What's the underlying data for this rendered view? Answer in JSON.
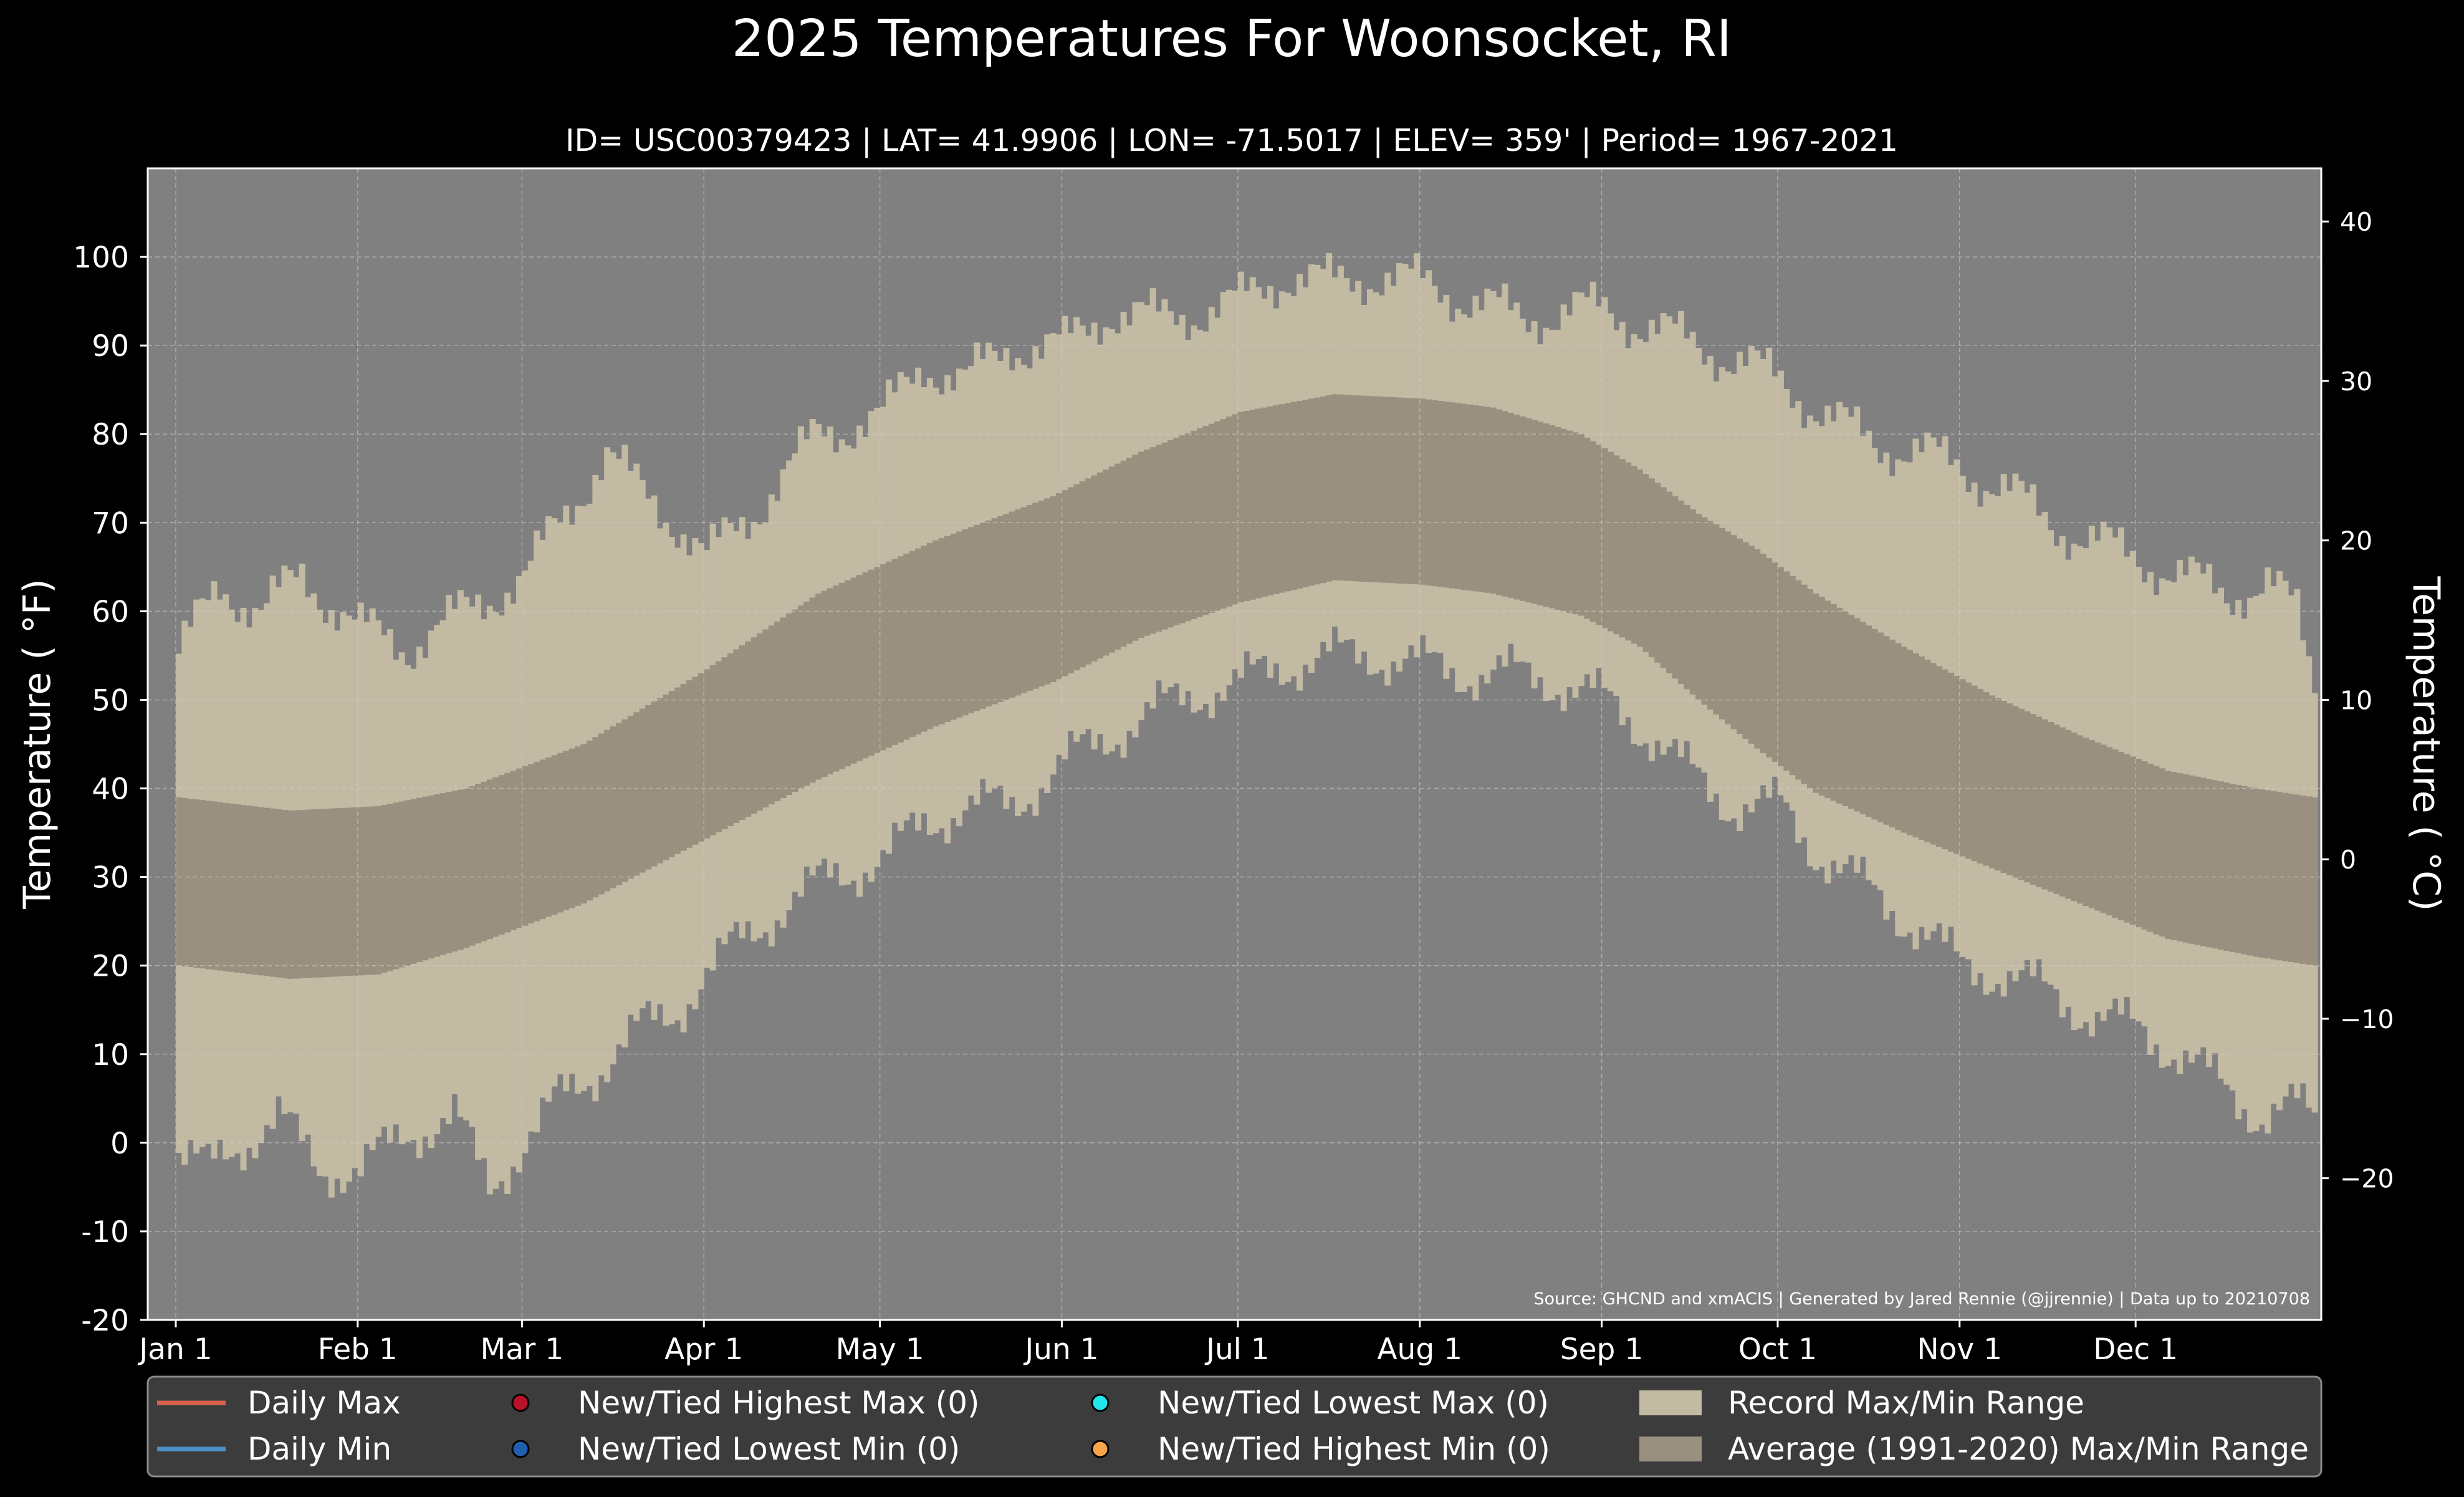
{
  "chart_data": {
    "type": "bar",
    "title": "2025 Temperatures For Woonsocket, RI",
    "subtitle": "ID= USC00379423 | LAT= 41.9906 | LON= -71.5017 | ELEV= 359' | Period= 1967-2021",
    "ylabel_left": "Temperature ( °F)",
    "ylabel_right": "Temperature ( °C)",
    "ylim": [
      -20,
      110
    ],
    "y_ticks": [
      -20,
      -10,
      0,
      10,
      20,
      30,
      40,
      50,
      60,
      70,
      80,
      90,
      100
    ],
    "y_ticks_c": [
      -20,
      -10,
      0,
      10,
      20,
      30,
      40
    ],
    "x_ticks": [
      {
        "day": 1,
        "label": "Jan 1"
      },
      {
        "day": 32,
        "label": "Feb 1"
      },
      {
        "day": 60,
        "label": "Mar 1"
      },
      {
        "day": 91,
        "label": "Apr 1"
      },
      {
        "day": 121,
        "label": "May 1"
      },
      {
        "day": 152,
        "label": "Jun 1"
      },
      {
        "day": 182,
        "label": "Jul 1"
      },
      {
        "day": 213,
        "label": "Aug 1"
      },
      {
        "day": 244,
        "label": "Sep 1"
      },
      {
        "day": 274,
        "label": "Oct 1"
      },
      {
        "day": 305,
        "label": "Nov 1"
      },
      {
        "day": 335,
        "label": "Dec 1"
      }
    ],
    "grid": true,
    "source_note": "Source: GHCND and xmACIS | Generated by Jared Rennie (@jjrennie) | Data up to 20210708",
    "record_max_anchors": [
      [
        1,
        55
      ],
      [
        8,
        63
      ],
      [
        15,
        60
      ],
      [
        22,
        64
      ],
      [
        32,
        58
      ],
      [
        40,
        56
      ],
      [
        50,
        60
      ],
      [
        60,
        64
      ],
      [
        66,
        70
      ],
      [
        74,
        78
      ],
      [
        79,
        74
      ],
      [
        86,
        70
      ],
      [
        91,
        66
      ],
      [
        100,
        72
      ],
      [
        110,
        80
      ],
      [
        121,
        82
      ],
      [
        128,
        88
      ],
      [
        135,
        86
      ],
      [
        143,
        90
      ],
      [
        152,
        90
      ],
      [
        160,
        94
      ],
      [
        168,
        93
      ],
      [
        176,
        94
      ],
      [
        182,
        95
      ],
      [
        190,
        98
      ],
      [
        198,
        97
      ],
      [
        205,
        98
      ],
      [
        213,
        97
      ],
      [
        222,
        95
      ],
      [
        230,
        93
      ],
      [
        238,
        94
      ],
      [
        244,
        94
      ],
      [
        252,
        92
      ],
      [
        260,
        90
      ],
      [
        268,
        88
      ],
      [
        274,
        86
      ],
      [
        282,
        82
      ],
      [
        290,
        79
      ],
      [
        298,
        78
      ],
      [
        305,
        76
      ],
      [
        312,
        74
      ],
      [
        320,
        70
      ],
      [
        327,
        68
      ],
      [
        335,
        66
      ],
      [
        342,
        64
      ],
      [
        350,
        62
      ],
      [
        357,
        63
      ],
      [
        362,
        60
      ],
      [
        365,
        52
      ]
    ],
    "record_min_anchors": [
      [
        1,
        -1
      ],
      [
        6,
        -3
      ],
      [
        12,
        0
      ],
      [
        18,
        3
      ],
      [
        25,
        -3
      ],
      [
        32,
        -3
      ],
      [
        40,
        1
      ],
      [
        48,
        3
      ],
      [
        54,
        -5
      ],
      [
        60,
        0
      ],
      [
        66,
        5
      ],
      [
        72,
        8
      ],
      [
        80,
        13
      ],
      [
        86,
        15
      ],
      [
        91,
        19
      ],
      [
        97,
        23
      ],
      [
        105,
        27
      ],
      [
        112,
        30
      ],
      [
        121,
        32
      ],
      [
        128,
        36
      ],
      [
        135,
        38
      ],
      [
        143,
        38
      ],
      [
        152,
        43
      ],
      [
        160,
        46
      ],
      [
        168,
        49
      ],
      [
        176,
        51
      ],
      [
        182,
        52
      ],
      [
        190,
        54
      ],
      [
        198,
        55
      ],
      [
        205,
        55
      ],
      [
        213,
        54
      ],
      [
        220,
        53
      ],
      [
        228,
        53
      ],
      [
        236,
        52
      ],
      [
        244,
        50
      ],
      [
        252,
        46
      ],
      [
        258,
        42
      ],
      [
        266,
        38
      ],
      [
        274,
        38
      ],
      [
        280,
        33
      ],
      [
        288,
        29
      ],
      [
        296,
        25
      ],
      [
        305,
        20
      ],
      [
        312,
        19
      ],
      [
        320,
        17
      ],
      [
        328,
        14
      ],
      [
        335,
        13
      ],
      [
        342,
        10
      ],
      [
        350,
        6
      ],
      [
        356,
        3
      ],
      [
        362,
        4
      ],
      [
        365,
        3
      ]
    ],
    "average_max_anchors": [
      [
        1,
        39
      ],
      [
        20,
        37.5
      ],
      [
        35,
        38
      ],
      [
        50,
        40
      ],
      [
        70,
        45
      ],
      [
        90,
        53
      ],
      [
        110,
        62
      ],
      [
        130,
        68
      ],
      [
        150,
        73
      ],
      [
        165,
        78
      ],
      [
        182,
        82.5
      ],
      [
        198,
        84.5
      ],
      [
        213,
        84
      ],
      [
        225,
        83
      ],
      [
        240,
        80
      ],
      [
        250,
        76
      ],
      [
        260,
        71
      ],
      [
        270,
        67
      ],
      [
        280,
        62
      ],
      [
        295,
        56
      ],
      [
        310,
        50.5
      ],
      [
        325,
        46
      ],
      [
        340,
        42
      ],
      [
        355,
        40
      ],
      [
        365,
        39
      ]
    ],
    "average_min_anchors": [
      [
        1,
        20
      ],
      [
        20,
        18.5
      ],
      [
        35,
        19
      ],
      [
        50,
        22
      ],
      [
        70,
        27
      ],
      [
        90,
        34
      ],
      [
        110,
        41
      ],
      [
        130,
        47
      ],
      [
        150,
        52
      ],
      [
        165,
        57
      ],
      [
        182,
        61
      ],
      [
        198,
        63.5
      ],
      [
        213,
        63
      ],
      [
        225,
        62
      ],
      [
        240,
        59.5
      ],
      [
        250,
        56
      ],
      [
        260,
        50
      ],
      [
        270,
        44.5
      ],
      [
        280,
        39.5
      ],
      [
        295,
        35
      ],
      [
        310,
        31
      ],
      [
        325,
        27
      ],
      [
        340,
        23
      ],
      [
        355,
        21
      ],
      [
        365,
        20
      ]
    ],
    "legend": {
      "placement": "bottom",
      "items": [
        {
          "label": "Daily Max",
          "symbol": "line",
          "color": "#d9634c"
        },
        {
          "label": "Daily Min",
          "symbol": "line",
          "color": "#4b8fc4"
        },
        {
          "label": "New/Tied Highest Max (0)",
          "symbol": "marker",
          "color": "#b8122b"
        },
        {
          "label": "New/Tied Lowest Min (0)",
          "symbol": "marker",
          "color": "#1f5fae"
        },
        {
          "label": "New/Tied Lowest Max (0)",
          "symbol": "marker",
          "color": "#22e6ee"
        },
        {
          "label": "New/Tied Highest Min (0)",
          "symbol": "marker",
          "color": "#f6a54a"
        },
        {
          "label": "Record Max/Min Range",
          "symbol": "patch",
          "color": "#c3baa3"
        },
        {
          "label": "Average (1991-2020) Max/Min Range",
          "symbol": "patch",
          "color": "#999080"
        }
      ]
    },
    "colors": {
      "plot_background": "#808080",
      "record_range": "#c3baa3",
      "average_range": "#999080",
      "legend_background": "#3c3c3c"
    }
  }
}
